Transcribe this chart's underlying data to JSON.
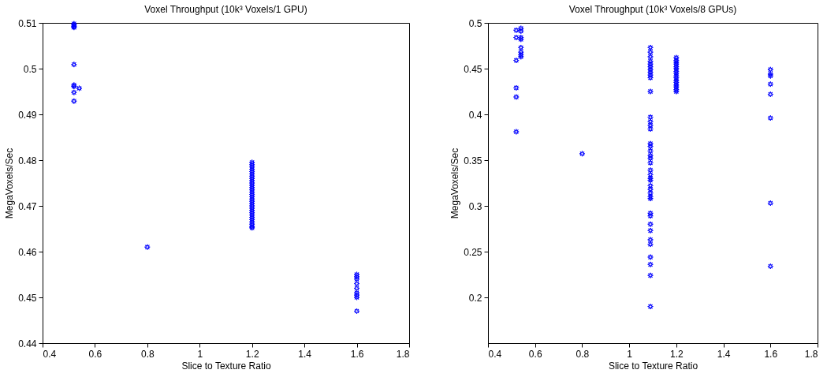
{
  "chart_data": [
    {
      "type": "scatter",
      "title": "Voxel Throughput (10k³ Voxels/1 GPU)",
      "xlabel": "Slice to Texture Ratio",
      "ylabel": "MegaVoxels/Sec",
      "marker": "star",
      "grid": false,
      "xlim": [
        0.4,
        1.8
      ],
      "xticks": [
        0.4,
        0.6,
        0.8,
        1,
        1.2,
        1.4,
        1.6,
        1.8
      ],
      "ylim": [
        0.44,
        0.51
      ],
      "yticks": [
        0.44,
        0.45,
        0.46,
        0.47,
        0.48,
        0.49,
        0.5,
        0.51
      ],
      "series": [
        {
          "color": "#0000ff",
          "x": [
            0.52,
            0.52,
            0.52,
            0.52,
            0.52,
            0.52,
            0.52,
            0.54,
            0.52,
            0.52,
            0.8,
            1.2,
            1.2,
            1.2,
            1.2,
            1.2,
            1.2,
            1.2,
            1.2,
            1.2,
            1.2,
            1.2,
            1.2,
            1.2,
            1.2,
            1.2,
            1.2,
            1.2,
            1.2,
            1.2,
            1.2,
            1.2,
            1.2,
            1.2,
            1.2,
            1.2,
            1.2,
            1.2,
            1.2,
            1.2,
            1.2,
            1.6,
            1.6,
            1.6,
            1.6,
            1.6,
            1.6,
            1.6,
            1.6,
            1.6
          ],
          "values": [
            0.5098,
            0.5095,
            0.5092,
            0.509,
            0.5009,
            0.4964,
            0.4961,
            0.4957,
            0.4948,
            0.4929,
            0.461,
            0.4795,
            0.479,
            0.4785,
            0.478,
            0.4775,
            0.477,
            0.4765,
            0.476,
            0.4755,
            0.475,
            0.4745,
            0.474,
            0.4735,
            0.473,
            0.4725,
            0.472,
            0.4715,
            0.471,
            0.4705,
            0.47,
            0.4695,
            0.469,
            0.4685,
            0.468,
            0.4675,
            0.467,
            0.4665,
            0.466,
            0.4655,
            0.4652,
            0.455,
            0.4545,
            0.454,
            0.453,
            0.452,
            0.451,
            0.4505,
            0.45,
            0.447
          ]
        }
      ]
    },
    {
      "type": "scatter",
      "title": "Voxel Throughput (10k³ Voxels/8 GPUs)",
      "xlabel": "Slice to Texture Ratio",
      "ylabel": "MegaVoxels/Sec",
      "marker": "star",
      "grid": false,
      "xlim": [
        0.4,
        1.8
      ],
      "xticks": [
        0.4,
        0.6,
        0.8,
        1,
        1.2,
        1.4,
        1.6,
        1.8
      ],
      "ylim": [
        0.15,
        0.5
      ],
      "yticks": [
        0.2,
        0.25,
        0.3,
        0.35,
        0.4,
        0.45,
        0.5
      ],
      "series": [
        {
          "color": "#0000ff",
          "x": [
            0.52,
            0.52,
            0.52,
            0.52,
            0.52,
            0.52,
            0.54,
            0.54,
            0.54,
            0.54,
            0.54,
            0.54,
            0.54,
            0.54,
            0.8,
            1.09,
            1.09,
            1.09,
            1.09,
            1.09,
            1.09,
            1.09,
            1.09,
            1.09,
            1.09,
            1.09,
            1.09,
            1.09,
            1.09,
            1.09,
            1.09,
            1.09,
            1.09,
            1.09,
            1.09,
            1.09,
            1.09,
            1.09,
            1.09,
            1.09,
            1.09,
            1.09,
            1.09,
            1.09,
            1.09,
            1.09,
            1.09,
            1.09,
            1.09,
            1.09,
            1.09,
            1.09,
            1.09,
            1.09,
            1.09,
            1.2,
            1.2,
            1.2,
            1.2,
            1.2,
            1.2,
            1.2,
            1.2,
            1.2,
            1.2,
            1.2,
            1.2,
            1.2,
            1.2,
            1.2,
            1.2,
            1.6,
            1.6,
            1.6,
            1.6,
            1.6,
            1.6,
            1.6,
            1.6
          ],
          "values": [
            0.492,
            0.484,
            0.459,
            0.429,
            0.419,
            0.381,
            0.494,
            0.491,
            0.484,
            0.482,
            0.473,
            0.468,
            0.465,
            0.463,
            0.357,
            0.473,
            0.468,
            0.463,
            0.458,
            0.455,
            0.452,
            0.449,
            0.446,
            0.443,
            0.44,
            0.425,
            0.397,
            0.392,
            0.388,
            0.384,
            0.368,
            0.365,
            0.36,
            0.355,
            0.352,
            0.347,
            0.339,
            0.334,
            0.33,
            0.328,
            0.322,
            0.318,
            0.314,
            0.31,
            0.308,
            0.292,
            0.289,
            0.28,
            0.273,
            0.263,
            0.258,
            0.244,
            0.236,
            0.224,
            0.19,
            0.462,
            0.459,
            0.457,
            0.455,
            0.452,
            0.45,
            0.447,
            0.445,
            0.442,
            0.44,
            0.437,
            0.435,
            0.432,
            0.43,
            0.427,
            0.425,
            0.449,
            0.444,
            0.442,
            0.433,
            0.422,
            0.396,
            0.303,
            0.234
          ]
        }
      ]
    }
  ]
}
